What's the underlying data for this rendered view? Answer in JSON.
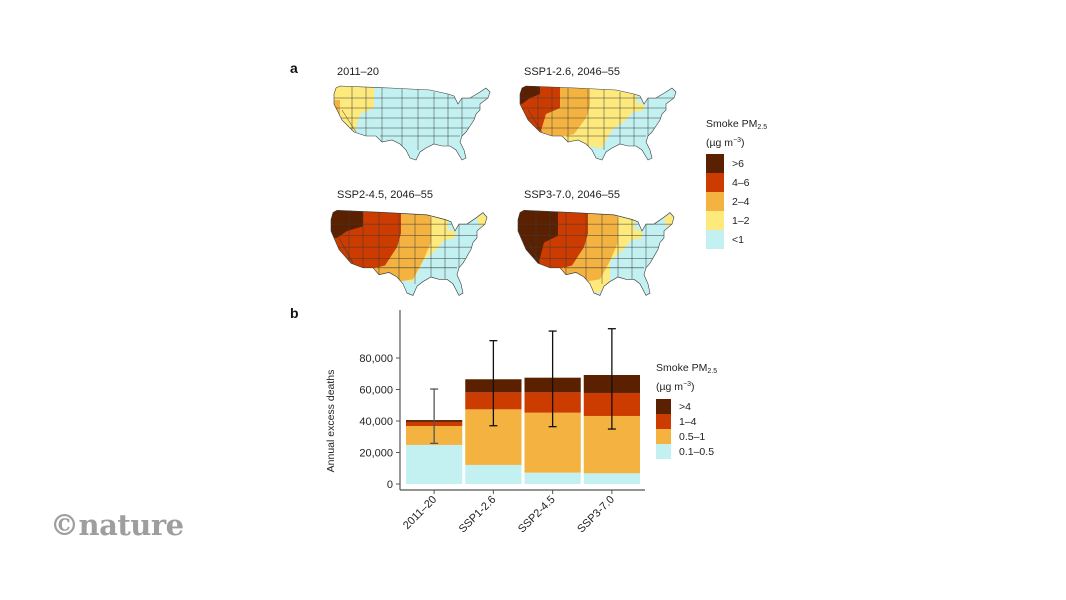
{
  "panels": {
    "a_label": "a",
    "b_label": "b"
  },
  "maps": [
    {
      "title": "2011–20",
      "scenario": "2011-20"
    },
    {
      "title": "SSP1-2.6, 2046–55",
      "scenario": "SSP1-2.6"
    },
    {
      "title": "SSP2-4.5, 2046–55",
      "scenario": "SSP2-4.5"
    },
    {
      "title": "SSP3-7.0, 2046–55",
      "scenario": "SSP3-7.0"
    }
  ],
  "legend_a": {
    "title_main": "Smoke PM",
    "title_sub": "2.5",
    "title_unit_pre": "(µg m",
    "title_unit_sup": "−3",
    "title_unit_post": ")",
    "items": [
      {
        "label": ">6",
        "color": "#5a2000"
      },
      {
        "label": "4–6",
        "color": "#cc3b00"
      },
      {
        "label": "2–4",
        "color": "#f4b341"
      },
      {
        "label": "1–2",
        "color": "#fde97c"
      },
      {
        "label": "<1",
        "color": "#c3f1f2"
      }
    ]
  },
  "legend_b": {
    "title_main": "Smoke PM",
    "title_sub": "2.5",
    "title_unit_pre": "(µg m",
    "title_unit_sup": "−3",
    "title_unit_post": ")",
    "items": [
      {
        "label": ">4",
        "color": "#5a2000"
      },
      {
        "label": "1–4",
        "color": "#cc3b00"
      },
      {
        "label": "0.5–1",
        "color": "#f4b341"
      },
      {
        "label": "0.1–0.5",
        "color": "#c3f1f2"
      }
    ]
  },
  "chart_data": {
    "type": "bar",
    "stacked": true,
    "title": "",
    "xlabel": "",
    "ylabel": "Annual excess deaths",
    "ylim": [
      0,
      100000
    ],
    "yticks": [
      0,
      20000,
      40000,
      60000,
      80000
    ],
    "ytick_labels": [
      "0",
      "20,000",
      "40,000",
      "60,000",
      "80,000"
    ],
    "categories": [
      "2011–20",
      "SSP1-2.6",
      "SSP2-4.5",
      "SSP3-7.0"
    ],
    "series": [
      {
        "name": "0.1–0.5",
        "color": "#c3f1f2",
        "values": [
          24800,
          12100,
          7200,
          6800
        ]
      },
      {
        "name": "0.5–1",
        "color": "#f4b341",
        "values": [
          12000,
          35300,
          38100,
          36400
        ]
      },
      {
        "name": "1–4",
        "color": "#cc3b00",
        "values": [
          2600,
          10800,
          12900,
          14600
        ]
      },
      {
        "name": ">4",
        "color": "#5a2000",
        "values": [
          1200,
          8300,
          9300,
          11400
        ]
      }
    ],
    "totals": [
      40600,
      66500,
      67500,
      69200
    ],
    "error_bars": {
      "lower": [
        25800,
        37000,
        36400,
        34900
      ],
      "upper": [
        60300,
        91000,
        97100,
        98600
      ]
    },
    "legend_position": "right",
    "grid": false
  },
  "watermark": "©nature"
}
